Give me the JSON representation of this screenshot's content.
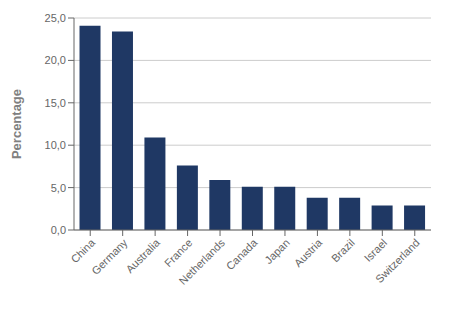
{
  "chart_data": {
    "type": "bar",
    "ylabel": "Percentage",
    "categories": [
      "China",
      "Germany",
      "Australia",
      "France",
      "Netherlands",
      "Canada",
      "Japan",
      "Austria",
      "Brazil",
      "Israel",
      "Switzerland"
    ],
    "values": [
      24.1,
      23.4,
      10.9,
      7.6,
      5.9,
      5.1,
      5.1,
      3.8,
      3.8,
      2.9,
      2.9
    ],
    "color": "#1F3864",
    "ylim": [
      0,
      25
    ],
    "yticks": [
      {
        "value": 0.0,
        "label": "0,0"
      },
      {
        "value": 5.0,
        "label": "5,0"
      },
      {
        "value": 10.0,
        "label": "10,0"
      },
      {
        "value": 15.0,
        "label": "15,0"
      },
      {
        "value": 20.0,
        "label": "20,0"
      },
      {
        "value": 25.0,
        "label": "25,0"
      }
    ],
    "grid": true
  }
}
